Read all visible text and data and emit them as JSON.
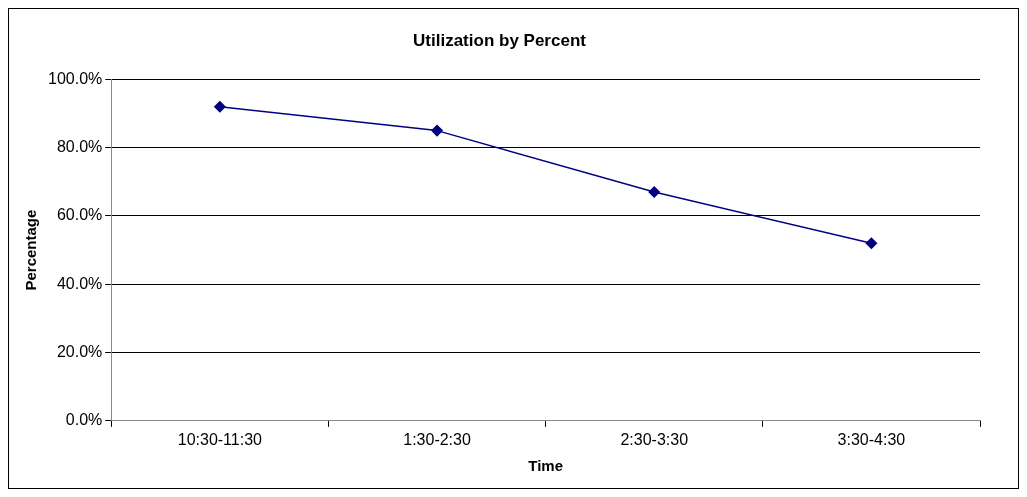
{
  "chart_data": {
    "type": "line",
    "title": "Utilization by Percent",
    "xlabel": "Time",
    "ylabel": "Percentage",
    "categories": [
      "10:30-11:30",
      "1:30-2:30",
      "2:30-3:30",
      "3:30-4:30"
    ],
    "series": [
      {
        "color": "#000080",
        "values": [
          92,
          85,
          67,
          52
        ]
      }
    ],
    "ylim": [
      0,
      100
    ],
    "yticks": [
      {
        "value": 0,
        "label": "0.0%"
      },
      {
        "value": 20,
        "label": "20.0%"
      },
      {
        "value": 40,
        "label": "40.0%"
      },
      {
        "value": 60,
        "label": "60.0%"
      },
      {
        "value": 80,
        "label": "80.0%"
      },
      {
        "value": 100,
        "label": "100.0%"
      }
    ],
    "grid": "y",
    "legend": false,
    "marker": "diamond",
    "line_style": "solid"
  }
}
